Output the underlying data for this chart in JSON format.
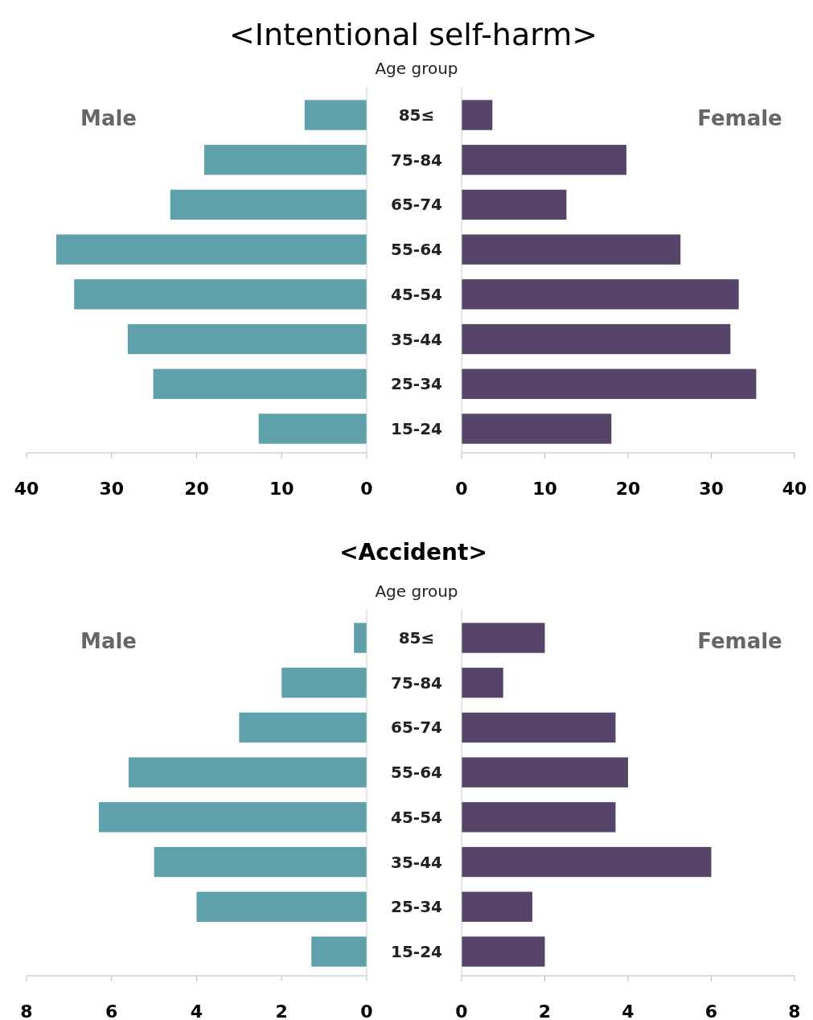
{
  "chart_data": [
    {
      "type": "bar",
      "orientation": "horizontal",
      "series": [
        {
          "name": "Male",
          "color": "#5fa1aa",
          "values": [
            7.3,
            19.1,
            23.1,
            36.5,
            34.4,
            28.1,
            25.1,
            12.7
          ]
        }
      ],
      "xlim": [
        40,
        0
      ],
      "xticks": [
        40,
        30,
        20,
        10,
        0
      ],
      "tick_labels": "x"
    },
    {
      "type": "bar",
      "orientation": "horizontal",
      "title": "<Intentional self-harm>",
      "ylabel": "Age group",
      "categories": [
        "85≤",
        "75-84",
        "65-74",
        "55-64",
        "45-54",
        "35-44",
        "25-34",
        "15-24"
      ],
      "series": [
        {
          "name": "Female",
          "color": "#574469",
          "values": [
            3.7,
            19.8,
            12.6,
            26.3,
            33.3,
            32.3,
            35.4,
            18.0
          ]
        }
      ],
      "xlim": [
        0,
        40
      ],
      "xticks": [
        0,
        10,
        20,
        30,
        40
      ]
    },
    {
      "type": "bar",
      "orientation": "horizontal",
      "series": [
        {
          "name": "Male",
          "color": "#5fa1aa",
          "values": [
            0.3,
            2.0,
            3.0,
            5.6,
            6.3,
            5.0,
            4.0,
            1.3
          ]
        }
      ],
      "xlim": [
        8,
        0
      ],
      "xticks": [
        8,
        6,
        4,
        2,
        0
      ],
      "tick_labels": "x"
    },
    {
      "type": "bar",
      "orientation": "horizontal",
      "title": "<Accident>",
      "ylabel": "Age group",
      "categories": [
        "85≤",
        "75-84",
        "65-74",
        "55-64",
        "45-54",
        "35-44",
        "25-34",
        "15-24"
      ],
      "series": [
        {
          "name": "Female",
          "color": "#574469",
          "values": [
            2.0,
            1.0,
            3.7,
            4.0,
            3.7,
            6.0,
            1.7,
            2.0
          ]
        }
      ],
      "xlim": [
        0,
        8
      ],
      "xticks": [
        0,
        2,
        4,
        6,
        8
      ]
    }
  ]
}
